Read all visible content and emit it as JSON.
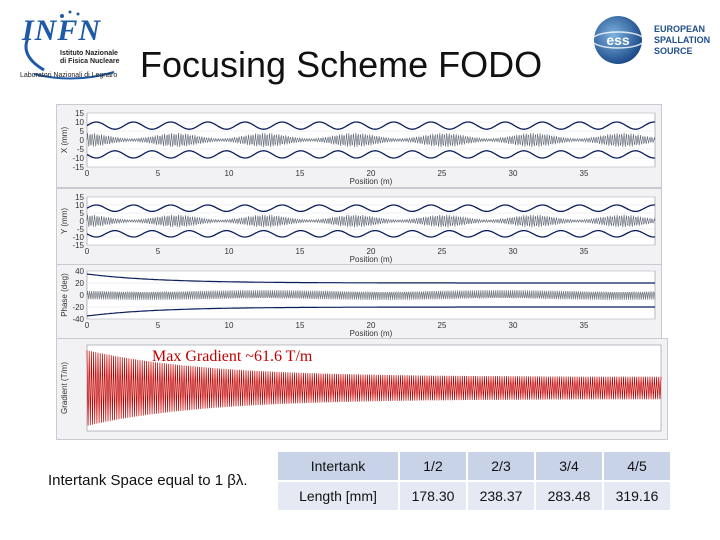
{
  "slide": {
    "title": "Focusing Scheme FODO",
    "infn_logo": {
      "word": "INFN",
      "subtitle": "Istituto Nazionale di Fisica Nucleare",
      "lab": "Laboratori Nazionali di Legnaro"
    },
    "ess_logo": {
      "badge": "ess",
      "line1": "EUROPEAN",
      "line2": "SPALLATION",
      "line3": "SOURCE"
    },
    "gradient_label": "Max Gradient ~61.6 T/m",
    "intertank_note": "Intertank Space equal to 1 βλ."
  },
  "colors": {
    "beam_blue": "#1f3a93",
    "envelope_navy": "#0b1f5c",
    "gradient_red": "#c00000",
    "table_header": "#c9d3e8",
    "table_row": "#e4e9f4"
  },
  "table": {
    "row1": {
      "label": "Intertank",
      "values": [
        "1/2",
        "2/3",
        "3/4",
        "4/5"
      ]
    },
    "row2": {
      "label": "Length [mm]",
      "values": [
        "178.30",
        "238.37",
        "283.48",
        "319.16"
      ]
    }
  },
  "chart_data": [
    {
      "type": "line",
      "ylabel": "X (mm)",
      "xlabel": "Position (m)",
      "xlim": [
        0,
        40
      ],
      "ylim": [
        -15,
        15
      ],
      "x_ticks": [
        "0",
        "5",
        "10",
        "15",
        "20",
        "25",
        "30",
        "35"
      ],
      "y_ticks": [
        "15",
        "10",
        "5",
        "0",
        "-5",
        "-10",
        "-15"
      ],
      "series": [
        {
          "envelope_amplitude": 10,
          "core_amplitude": 4
        }
      ]
    },
    {
      "type": "line",
      "ylabel": "Y (mm)",
      "xlabel": "Position (m)",
      "xlim": [
        0,
        40
      ],
      "ylim": [
        -15,
        15
      ],
      "x_ticks": [
        "0",
        "5",
        "10",
        "15",
        "20",
        "25",
        "30",
        "35"
      ],
      "y_ticks": [
        "15",
        "10",
        "5",
        "0",
        "-5",
        "-10",
        "-15"
      ],
      "series": [
        {
          "envelope_amplitude": 10,
          "core_amplitude": 4
        }
      ]
    },
    {
      "type": "line",
      "ylabel": "Phase (deg)",
      "xlabel": "Position (m)",
      "xlim": [
        0,
        40
      ],
      "ylim": [
        -40,
        40
      ],
      "x_ticks": [
        "0",
        "5",
        "10",
        "15",
        "20",
        "25",
        "30",
        "35"
      ],
      "y_ticks": [
        "40",
        "20",
        "0",
        "-20",
        "-40"
      ],
      "series": [
        {
          "envelope_start": 35,
          "envelope_end": 20,
          "core_amplitude": 8
        }
      ]
    },
    {
      "type": "line",
      "ylabel": "Gradient (T/m)",
      "xlim": [
        0,
        40
      ],
      "ylim": [
        -70,
        70
      ],
      "series": [
        {
          "peak_start": 61.6,
          "peak_end": 18
        }
      ]
    }
  ]
}
